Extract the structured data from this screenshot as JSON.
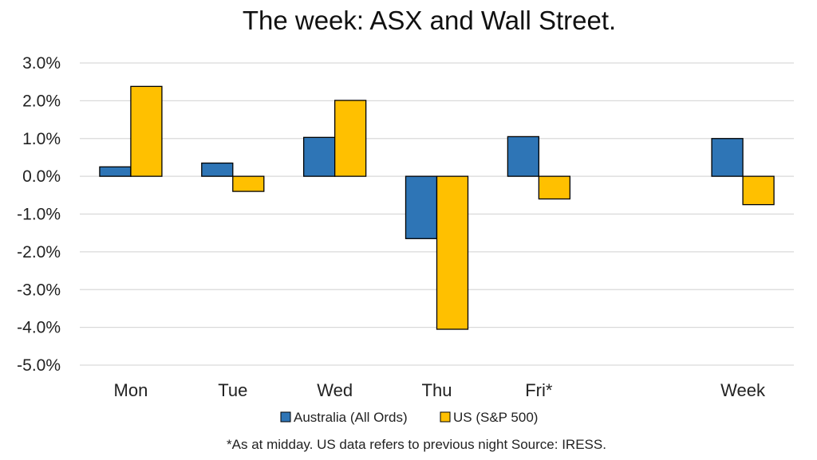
{
  "chart_data": {
    "type": "bar",
    "title": "The week:  ASX and Wall Street.",
    "categories": [
      "Mon",
      "Tue",
      "Wed",
      "Thu",
      "Fri*",
      "",
      "Week"
    ],
    "series": [
      {
        "name": "Australia (All Ords)",
        "color": "#2E75B6",
        "values": [
          0.25,
          0.35,
          1.03,
          -1.65,
          1.05,
          null,
          1.0
        ]
      },
      {
        "name": "US (S&P 500)",
        "color": "#FFC000",
        "values": [
          2.38,
          -0.4,
          2.01,
          -4.05,
          -0.6,
          null,
          -0.75
        ]
      }
    ],
    "ylim": [
      -5,
      3
    ],
    "yticks": [
      3,
      2,
      1,
      0,
      -1,
      -2,
      -3,
      -4,
      -5
    ],
    "ytick_labels": [
      "3.0%",
      "2.0%",
      "1.0%",
      "0.0%",
      "-1.0%",
      "-2.0%",
      "-3.0%",
      "-4.0%",
      "-5.0%"
    ],
    "grid": true,
    "legend_position": "bottom",
    "footnote": "*As at midday. US data refers to previous night  Source:  IRESS."
  }
}
